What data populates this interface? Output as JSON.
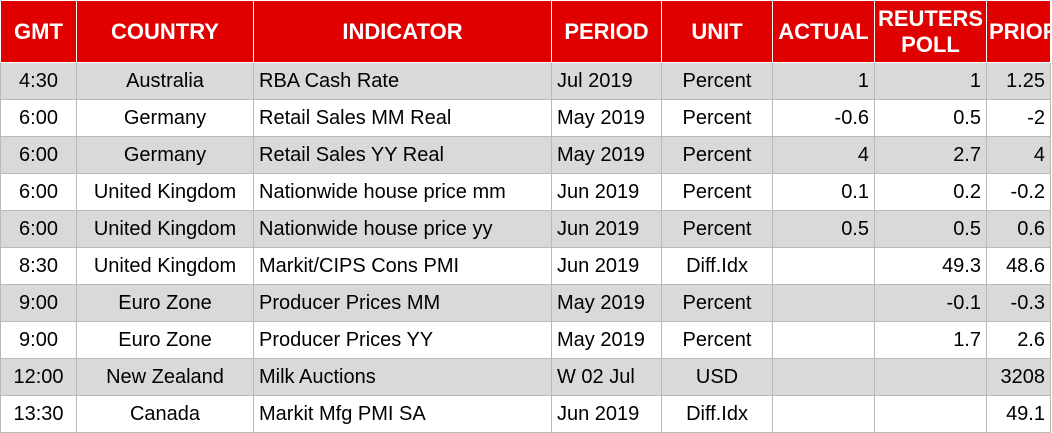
{
  "headers": {
    "gmt": "GMT",
    "country": "COUNTRY",
    "indicator": "INDICATOR",
    "period": "PERIOD",
    "unit": "UNIT",
    "actual": "ACTUAL",
    "poll_line1": "REUTERS",
    "poll_line2": "POLL",
    "prior": "PRIOR"
  },
  "colors": {
    "header_background": "#e00000",
    "header_text": "#ffffff",
    "shaded_row": "#d9d9d9",
    "plain_row": "#ffffff"
  },
  "rows": [
    {
      "gmt": "4:30",
      "country": "Australia",
      "indicator": "RBA Cash Rate",
      "period": "Jul 2019",
      "unit": "Percent",
      "actual": "1",
      "poll": "1",
      "prior": "1.25"
    },
    {
      "gmt": "6:00",
      "country": "Germany",
      "indicator": "Retail Sales MM Real",
      "period": "May 2019",
      "unit": "Percent",
      "actual": "-0.6",
      "poll": "0.5",
      "prior": "-2"
    },
    {
      "gmt": "6:00",
      "country": "Germany",
      "indicator": "Retail Sales YY Real",
      "period": "May 2019",
      "unit": "Percent",
      "actual": "4",
      "poll": "2.7",
      "prior": "4"
    },
    {
      "gmt": "6:00",
      "country": "United Kingdom",
      "indicator": "Nationwide house price mm",
      "period": "Jun 2019",
      "unit": "Percent",
      "actual": "0.1",
      "poll": "0.2",
      "prior": "-0.2"
    },
    {
      "gmt": "6:00",
      "country": "United Kingdom",
      "indicator": "Nationwide house price yy",
      "period": "Jun 2019",
      "unit": "Percent",
      "actual": "0.5",
      "poll": "0.5",
      "prior": "0.6"
    },
    {
      "gmt": "8:30",
      "country": "United Kingdom",
      "indicator": "Markit/CIPS Cons PMI",
      "period": "Jun 2019",
      "unit": "Diff.Idx",
      "actual": "",
      "poll": "49.3",
      "prior": "48.6"
    },
    {
      "gmt": "9:00",
      "country": "Euro Zone",
      "indicator": "Producer Prices MM",
      "period": "May 2019",
      "unit": "Percent",
      "actual": "",
      "poll": "-0.1",
      "prior": "-0.3"
    },
    {
      "gmt": "9:00",
      "country": "Euro Zone",
      "indicator": "Producer Prices YY",
      "period": "May 2019",
      "unit": "Percent",
      "actual": "",
      "poll": "1.7",
      "prior": "2.6"
    },
    {
      "gmt": "12:00",
      "country": "New Zealand",
      "indicator": "Milk Auctions",
      "period": "W 02 Jul",
      "unit": "USD",
      "actual": "",
      "poll": "",
      "prior": "3208"
    },
    {
      "gmt": "13:30",
      "country": "Canada",
      "indicator": "Markit Mfg PMI SA",
      "period": "Jun 2019",
      "unit": "Diff.Idx",
      "actual": "",
      "poll": "",
      "prior": "49.1"
    }
  ]
}
